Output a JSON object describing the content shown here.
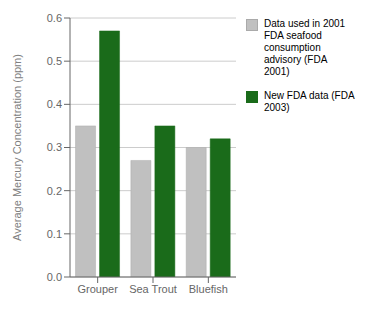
{
  "chart_data": {
    "type": "bar",
    "categories": [
      "Grouper",
      "Sea Trout",
      "Bluefish"
    ],
    "series": [
      {
        "name": "Data used in 2001\nFDA seafood\nconsumption\nadvisory (FDA\n2001)",
        "color": "#c0c0c0",
        "values": [
          0.35,
          0.27,
          0.3
        ]
      },
      {
        "name": "New FDA data (FDA\n2003)",
        "color": "#1a6b1a",
        "values": [
          0.57,
          0.35,
          0.32
        ]
      }
    ],
    "ylabel": "Average Mercury Concentration (ppm)",
    "ylim": [
      0,
      0.6
    ],
    "yticks": [
      {
        "value": 0,
        "label": "0.0"
      },
      0.1,
      0.2,
      0.3,
      0.4,
      0.5,
      0.6
    ],
    "grid": true,
    "legend": "right"
  }
}
